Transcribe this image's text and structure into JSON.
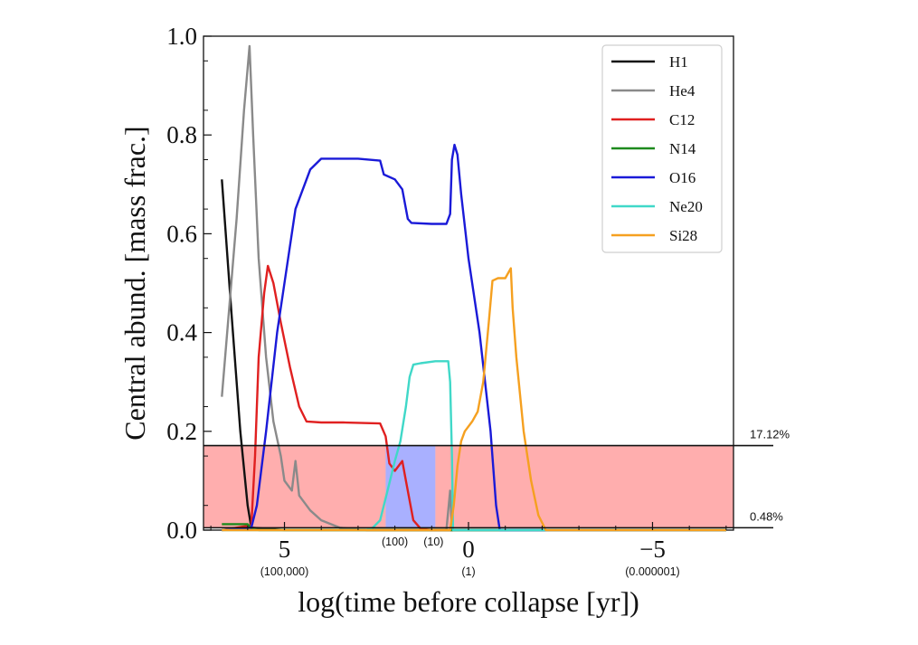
{
  "chart_data": {
    "type": "line",
    "xlabel": "log(time before collapse [yr])",
    "ylabel": "Central abund. [mass frac.]",
    "xlim": [
      7.2,
      -7.2
    ],
    "ylim": [
      0.0,
      1.0
    ],
    "x_ticks": [
      {
        "value": 5,
        "label": "5",
        "sublabel": "(100,000)"
      },
      {
        "value": 0,
        "label": "0",
        "sublabel": "(1)"
      },
      {
        "value": -5,
        "label": "−5",
        "sublabel": "(0.000001)"
      }
    ],
    "extra_x_labels": [
      {
        "value": 2.0,
        "label": "(100)"
      },
      {
        "value": 0.95,
        "label": "(10)"
      }
    ],
    "y_ticks": [
      {
        "value": 0.0,
        "label": "0.0"
      },
      {
        "value": 0.2,
        "label": "0.2"
      },
      {
        "value": 0.4,
        "label": "0.4"
      },
      {
        "value": 0.6,
        "label": "0.6"
      },
      {
        "value": 0.8,
        "label": "0.8"
      },
      {
        "value": 1.0,
        "label": "1.0"
      }
    ],
    "legend": {
      "placement": "top-right"
    },
    "series": [
      {
        "name": "H1",
        "color": "#111111",
        "points": [
          [
            6.7,
            0.71
          ],
          [
            6.45,
            0.45
          ],
          [
            6.2,
            0.2
          ],
          [
            6.0,
            0.05
          ],
          [
            5.9,
            0.005
          ],
          [
            5.0,
            0.0
          ],
          [
            -7.0,
            0.0
          ]
        ]
      },
      {
        "name": "He4",
        "color": "#8a8a8a",
        "points": [
          [
            6.7,
            0.27
          ],
          [
            6.3,
            0.63
          ],
          [
            6.1,
            0.85
          ],
          [
            5.95,
            0.98
          ],
          [
            5.85,
            0.8
          ],
          [
            5.7,
            0.55
          ],
          [
            5.5,
            0.35
          ],
          [
            5.3,
            0.22
          ],
          [
            5.1,
            0.15
          ],
          [
            5.0,
            0.1
          ],
          [
            4.8,
            0.08
          ],
          [
            4.7,
            0.14
          ],
          [
            4.6,
            0.07
          ],
          [
            4.3,
            0.04
          ],
          [
            4.0,
            0.02
          ],
          [
            3.5,
            0.005
          ],
          [
            3.0,
            0.001
          ],
          [
            0.6,
            0.001
          ],
          [
            0.5,
            0.08
          ],
          [
            0.45,
            0.0
          ],
          [
            -7.0,
            0.0
          ]
        ]
      },
      {
        "name": "C12",
        "color": "#e02020",
        "points": [
          [
            6.7,
            0.0
          ],
          [
            5.9,
            0.01
          ],
          [
            5.8,
            0.15
          ],
          [
            5.7,
            0.35
          ],
          [
            5.55,
            0.48
          ],
          [
            5.45,
            0.535
          ],
          [
            5.3,
            0.5
          ],
          [
            5.1,
            0.42
          ],
          [
            4.85,
            0.33
          ],
          [
            4.6,
            0.25
          ],
          [
            4.4,
            0.22
          ],
          [
            4.0,
            0.218
          ],
          [
            3.4,
            0.218
          ],
          [
            2.4,
            0.216
          ],
          [
            2.25,
            0.19
          ],
          [
            2.15,
            0.135
          ],
          [
            2.0,
            0.12
          ],
          [
            1.8,
            0.14
          ],
          [
            1.7,
            0.1
          ],
          [
            1.5,
            0.02
          ],
          [
            1.3,
            0.003
          ],
          [
            1.0,
            0.0
          ],
          [
            -7.0,
            0.0
          ]
        ]
      },
      {
        "name": "N14",
        "color": "#1e8a1e",
        "points": [
          [
            6.7,
            0.012
          ],
          [
            6.0,
            0.012
          ],
          [
            5.9,
            0.003
          ],
          [
            5.7,
            0.0
          ],
          [
            -7.0,
            0.0
          ]
        ]
      },
      {
        "name": "O16",
        "color": "#1a1ad8",
        "points": [
          [
            6.7,
            0.0
          ],
          [
            5.9,
            0.005
          ],
          [
            5.75,
            0.05
          ],
          [
            5.5,
            0.2
          ],
          [
            5.2,
            0.4
          ],
          [
            5.0,
            0.5
          ],
          [
            4.7,
            0.65
          ],
          [
            4.3,
            0.73
          ],
          [
            4.0,
            0.752
          ],
          [
            3.0,
            0.752
          ],
          [
            2.4,
            0.748
          ],
          [
            2.3,
            0.72
          ],
          [
            2.0,
            0.71
          ],
          [
            1.8,
            0.69
          ],
          [
            1.65,
            0.63
          ],
          [
            1.55,
            0.622
          ],
          [
            1.0,
            0.62
          ],
          [
            0.6,
            0.62
          ],
          [
            0.5,
            0.64
          ],
          [
            0.45,
            0.75
          ],
          [
            0.38,
            0.78
          ],
          [
            0.3,
            0.76
          ],
          [
            0.2,
            0.68
          ],
          [
            0.0,
            0.55
          ],
          [
            -0.3,
            0.4
          ],
          [
            -0.6,
            0.2
          ],
          [
            -0.75,
            0.05
          ],
          [
            -0.85,
            0.0
          ],
          [
            -7.0,
            0.0
          ]
        ]
      },
      {
        "name": "Ne20",
        "color": "#40d8c8",
        "points": [
          [
            6.7,
            0.0
          ],
          [
            2.8,
            0.0
          ],
          [
            2.6,
            0.005
          ],
          [
            2.4,
            0.02
          ],
          [
            2.2,
            0.08
          ],
          [
            2.0,
            0.14
          ],
          [
            1.85,
            0.18
          ],
          [
            1.7,
            0.25
          ],
          [
            1.6,
            0.31
          ],
          [
            1.5,
            0.335
          ],
          [
            1.3,
            0.338
          ],
          [
            0.9,
            0.342
          ],
          [
            0.55,
            0.342
          ],
          [
            0.5,
            0.3
          ],
          [
            0.45,
            0.15
          ],
          [
            0.42,
            0.0
          ],
          [
            -7.0,
            0.0
          ]
        ]
      },
      {
        "name": "Si28",
        "color": "#f5a020",
        "points": [
          [
            6.7,
            0.0
          ],
          [
            0.5,
            0.0
          ],
          [
            0.4,
            0.05
          ],
          [
            0.3,
            0.13
          ],
          [
            0.2,
            0.18
          ],
          [
            0.1,
            0.2
          ],
          [
            -0.1,
            0.22
          ],
          [
            -0.25,
            0.24
          ],
          [
            -0.4,
            0.3
          ],
          [
            -0.55,
            0.42
          ],
          [
            -0.65,
            0.505
          ],
          [
            -0.8,
            0.51
          ],
          [
            -1.0,
            0.51
          ],
          [
            -1.15,
            0.53
          ],
          [
            -1.2,
            0.45
          ],
          [
            -1.3,
            0.35
          ],
          [
            -1.5,
            0.2
          ],
          [
            -1.7,
            0.1
          ],
          [
            -1.9,
            0.03
          ],
          [
            -2.1,
            0.0
          ],
          [
            -7.0,
            0.0
          ]
        ]
      }
    ],
    "bands": [
      {
        "name": "red-band-left",
        "x_from": 7.2,
        "x_to": 2.25,
        "y_from": 0.0048,
        "y_to": 0.1712,
        "color": "#ff6b6b",
        "opacity": 0.55
      },
      {
        "name": "blue-band",
        "x_from": 2.25,
        "x_to": 0.9,
        "y_from": 0.0048,
        "y_to": 0.1712,
        "color": "#6f7bff",
        "opacity": 0.6
      },
      {
        "name": "red-band-right",
        "x_from": 0.9,
        "x_to": -7.2,
        "y_from": 0.0048,
        "y_to": 0.1712,
        "color": "#ff6b6b",
        "opacity": 0.55
      }
    ],
    "reference_lines": [
      {
        "y": 0.1712,
        "label": "17.12%"
      },
      {
        "y": 0.0048,
        "label": "0.48%"
      }
    ]
  }
}
